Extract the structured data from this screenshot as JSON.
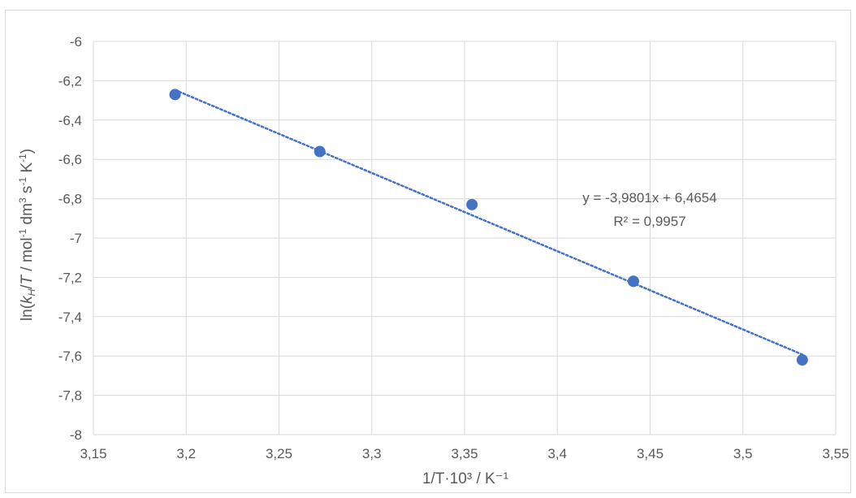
{
  "chart_data": {
    "type": "scatter",
    "title": "",
    "xlabel": "1/T·10³ / K⁻¹",
    "ylabel_parts": {
      "a": "ln(",
      "b": "k",
      "c": "H",
      "d": "/",
      "e": "T",
      "f": " / mol",
      "g": "-1",
      "h": " dm",
      "i": "3",
      "j": " s",
      "k": "-1",
      "l": " K",
      "m": "-1",
      "n": ")"
    },
    "xlim": [
      3.15,
      3.55
    ],
    "ylim": [
      -8,
      -6
    ],
    "x_ticks": [
      3.15,
      3.2,
      3.25,
      3.3,
      3.35,
      3.4,
      3.45,
      3.5,
      3.55
    ],
    "x_tick_labels": [
      "3,15",
      "3,2",
      "3,25",
      "3,3",
      "3,35",
      "3,4",
      "3,45",
      "3,5",
      "3,55"
    ],
    "y_ticks": [
      -6,
      -6.2,
      -6.4,
      -6.6,
      -6.8,
      -7,
      -7.2,
      -7.4,
      -7.6,
      -7.8,
      -8
    ],
    "y_tick_labels": [
      "-6",
      "-6,2",
      "-6,4",
      "-6,6",
      "-6,8",
      "-7",
      "-7,2",
      "-7,4",
      "-7,6",
      "-7,8",
      "-8"
    ],
    "grid": true,
    "points": [
      {
        "x": 3.194,
        "y": -6.27
      },
      {
        "x": 3.272,
        "y": -6.56
      },
      {
        "x": 3.354,
        "y": -6.83
      },
      {
        "x": 3.441,
        "y": -7.22
      },
      {
        "x": 3.532,
        "y": -7.62
      }
    ],
    "trendline": {
      "slope": -3.9801,
      "intercept": 6.4654,
      "x_range": [
        3.194,
        3.532
      ],
      "equation": "y = -3,9801x + 6,4654",
      "r2": "R² = 0,9957"
    },
    "colors": {
      "marker": "#4472c4",
      "trendline": "#4472c4",
      "grid": "#d9d9d9",
      "text": "#595959"
    }
  }
}
